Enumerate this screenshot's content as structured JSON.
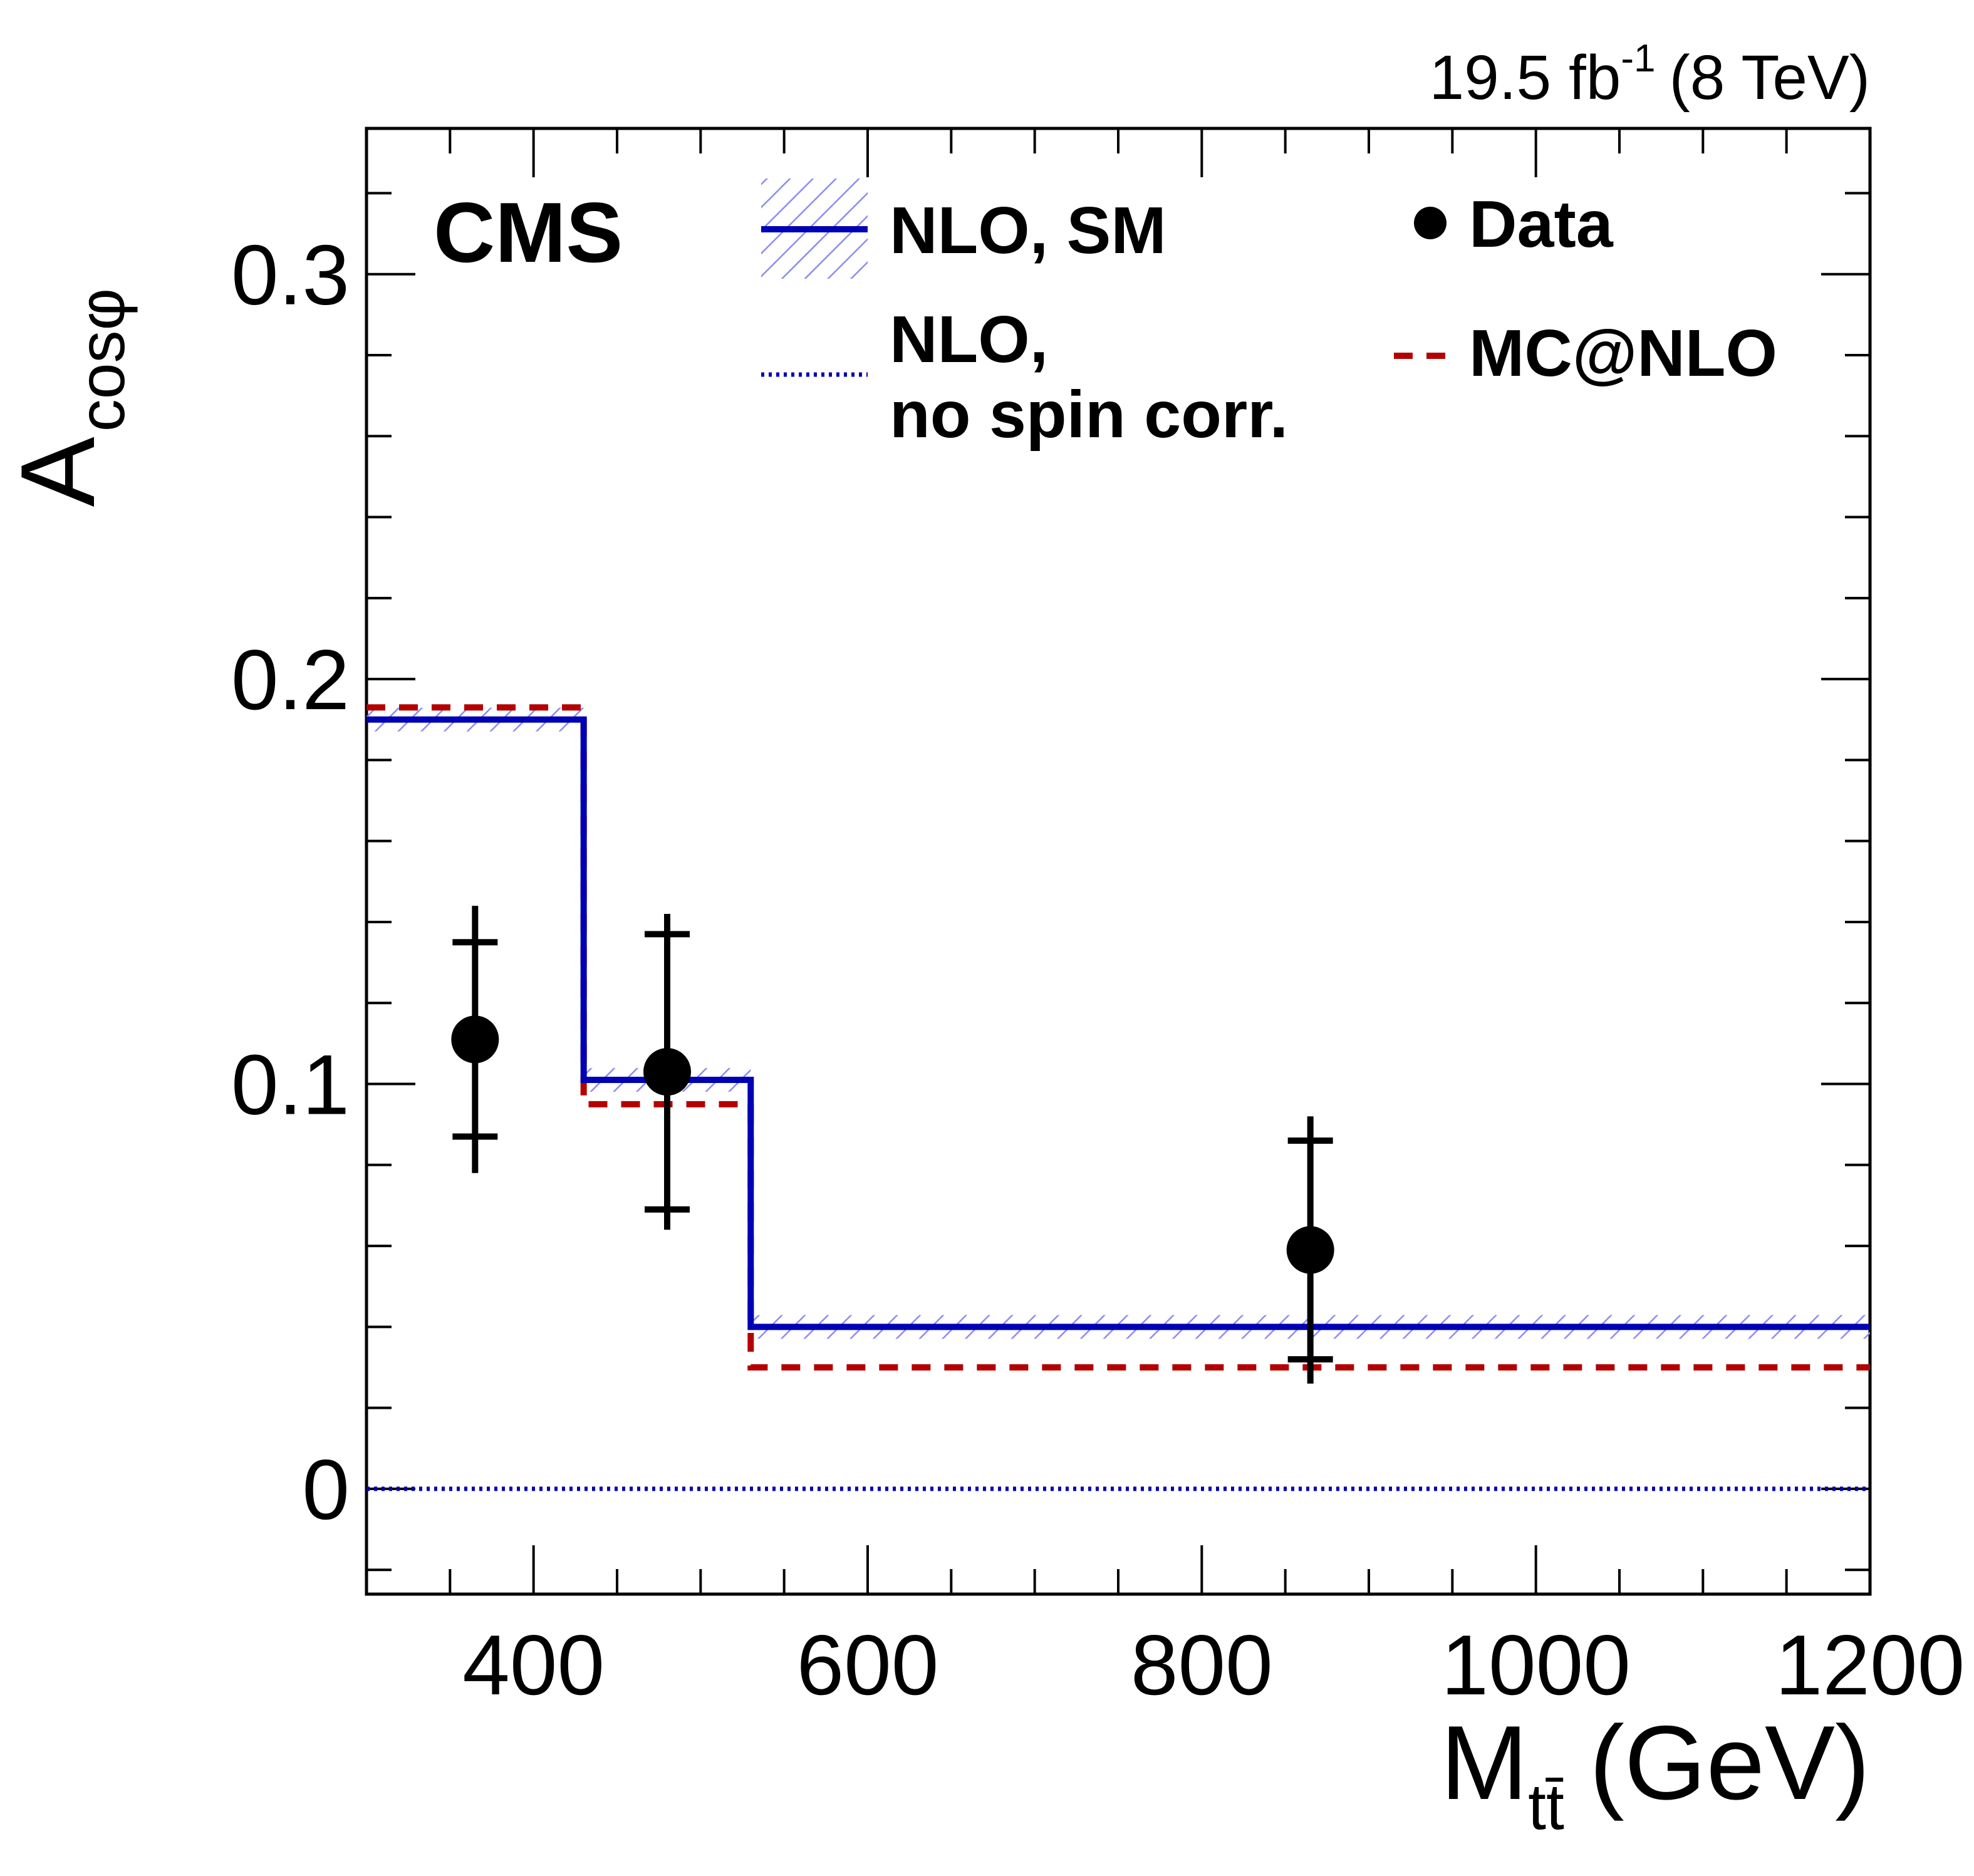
{
  "chart_data": {
    "type": "line",
    "experiment": "CMS",
    "lumi": {
      "value": "19.5 fb",
      "exponent": "-1",
      "energy": "(8 TeV)"
    },
    "xlabel": {
      "main": "M",
      "sub": "tt̄",
      "unit": "(GeV)"
    },
    "ylabel": {
      "main": "A",
      "sub": "cosφ"
    },
    "xlim": [
      300,
      1200
    ],
    "ylim": [
      -0.026,
      0.336
    ],
    "x_ticks": [
      400,
      600,
      800,
      1000,
      1200
    ],
    "x_tick_labels": [
      "400",
      "600",
      "800",
      "1000",
      "1200"
    ],
    "y_ticks": [
      0,
      0.1,
      0.2,
      0.3
    ],
    "y_tick_labels": [
      "0",
      "0.1",
      "0.2",
      "0.3"
    ],
    "bin_edges": [
      300,
      430,
      530,
      1200
    ],
    "series": [
      {
        "name": "NLO, SM",
        "style": "solid-with-band",
        "color": "#0000b4",
        "band_color": "#8c8cf0",
        "values": [
          0.19,
          0.101,
          0.04
        ],
        "band_halfwidth": [
          0.002,
          0.002,
          0.002
        ]
      },
      {
        "name": "MC@NLO",
        "style": "dashed",
        "color": "#b40000",
        "values": [
          0.193,
          0.095,
          0.03
        ]
      },
      {
        "name": "no spin corr.",
        "style": "dotted",
        "color": "#0000b4",
        "values": [
          0.0,
          0.0,
          0.0
        ]
      }
    ],
    "data": {
      "name": "Data",
      "x": [
        365,
        480,
        865
      ],
      "y": [
        0.111,
        0.103,
        0.059
      ],
      "err_stat": [
        0.024,
        0.034,
        0.027
      ],
      "err_total": [
        0.033,
        0.039,
        0.033
      ]
    },
    "legend": [
      {
        "key": "nlo_sm",
        "line1": "NLO, SM",
        "line2": ""
      },
      {
        "key": "nlo_nospin",
        "line1": "NLO,",
        "line2": "no spin corr."
      },
      {
        "key": "data",
        "line1": "Data",
        "line2": ""
      },
      {
        "key": "mcnlo",
        "line1": "MC@NLO",
        "line2": ""
      }
    ]
  }
}
